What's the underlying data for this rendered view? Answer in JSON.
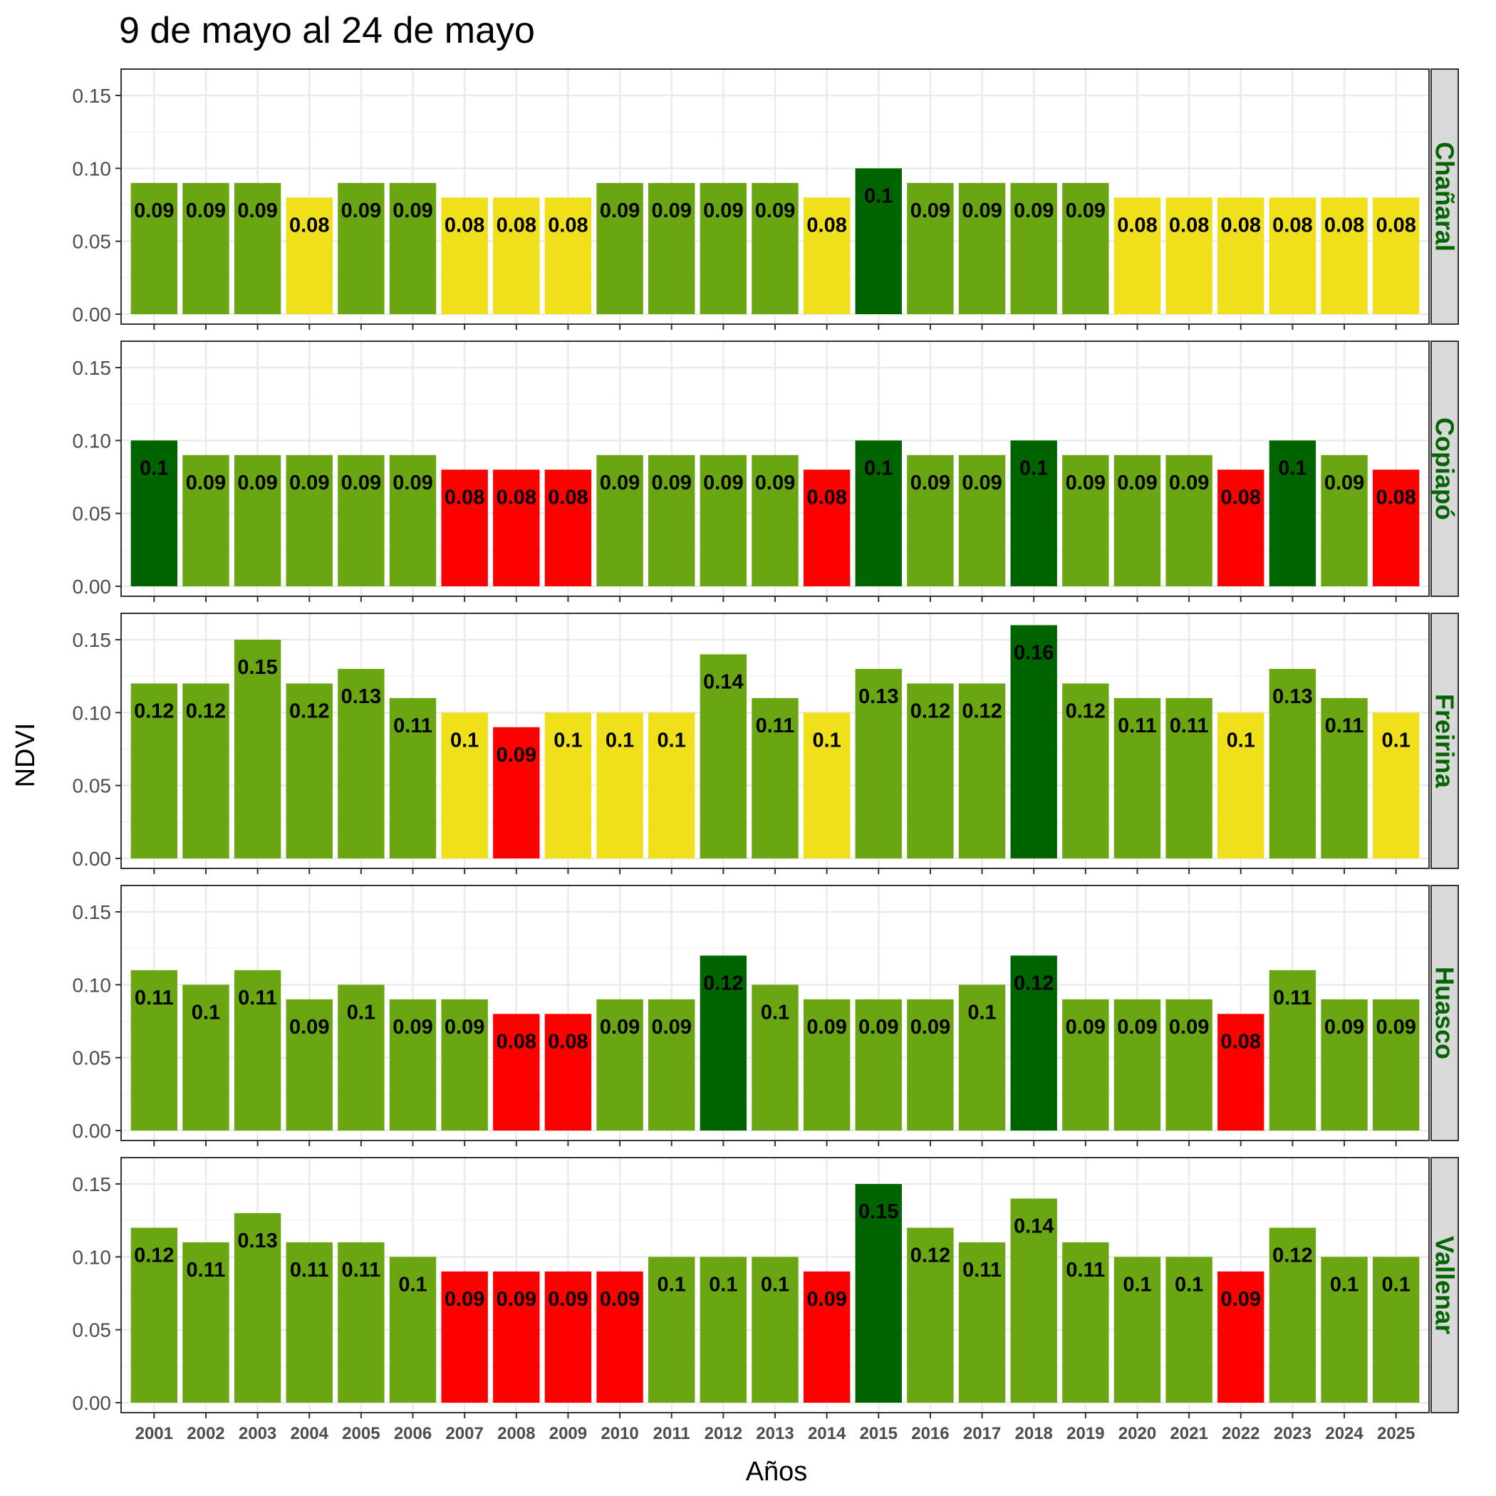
{
  "chart_data": {
    "type": "bar",
    "title": "9 de mayo al 24 de mayo",
    "xlabel": "Años",
    "ylabel": "NDVI",
    "ylim": [
      0,
      0.165
    ],
    "yticks": [
      "0.00",
      "0.05",
      "0.10",
      "0.15"
    ],
    "ytick_values": [
      0,
      0.05,
      0.1,
      0.15
    ],
    "grid": true,
    "categories": [
      "2001",
      "2002",
      "2003",
      "2004",
      "2005",
      "2006",
      "2007",
      "2008",
      "2009",
      "2010",
      "2011",
      "2012",
      "2013",
      "2014",
      "2015",
      "2016",
      "2017",
      "2018",
      "2019",
      "2020",
      "2021",
      "2022",
      "2023",
      "2024",
      "2025"
    ],
    "colors": {
      "dark_green": "#006400",
      "green": "#6aa612",
      "yellow": "#f0e01c",
      "red": "#ff0000",
      "strip_bg": "#d9d9d9",
      "strip_text": "#006400"
    },
    "panels": [
      {
        "name": "Chañaral",
        "values": [
          0.09,
          0.09,
          0.09,
          0.08,
          0.09,
          0.09,
          0.08,
          0.08,
          0.08,
          0.09,
          0.09,
          0.09,
          0.09,
          0.08,
          0.1,
          0.09,
          0.09,
          0.09,
          0.09,
          0.08,
          0.08,
          0.08,
          0.08,
          0.08,
          0.08
        ],
        "labels": [
          "0.09",
          "0.09",
          "0.09",
          "0.08",
          "0.09",
          "0.09",
          "0.08",
          "0.08",
          "0.08",
          "0.09",
          "0.09",
          "0.09",
          "0.09",
          "0.08",
          "0.1",
          "0.09",
          "0.09",
          "0.09",
          "0.09",
          "0.08",
          "0.08",
          "0.08",
          "0.08",
          "0.08",
          "0.08"
        ],
        "bar_colors": [
          "green",
          "green",
          "green",
          "yellow",
          "green",
          "green",
          "yellow",
          "yellow",
          "yellow",
          "green",
          "green",
          "green",
          "green",
          "yellow",
          "dark_green",
          "green",
          "green",
          "green",
          "green",
          "yellow",
          "yellow",
          "yellow",
          "yellow",
          "yellow",
          "yellow"
        ]
      },
      {
        "name": "Copiapó",
        "values": [
          0.1,
          0.09,
          0.09,
          0.09,
          0.09,
          0.09,
          0.08,
          0.08,
          0.08,
          0.09,
          0.09,
          0.09,
          0.09,
          0.08,
          0.1,
          0.09,
          0.09,
          0.1,
          0.09,
          0.09,
          0.09,
          0.08,
          0.1,
          0.09,
          0.08
        ],
        "labels": [
          "0.1",
          "0.09",
          "0.09",
          "0.09",
          "0.09",
          "0.09",
          "0.08",
          "0.08",
          "0.08",
          "0.09",
          "0.09",
          "0.09",
          "0.09",
          "0.08",
          "0.1",
          "0.09",
          "0.09",
          "0.1",
          "0.09",
          "0.09",
          "0.09",
          "0.08",
          "0.1",
          "0.09",
          "0.08"
        ],
        "bar_colors": [
          "dark_green",
          "green",
          "green",
          "green",
          "green",
          "green",
          "red",
          "red",
          "red",
          "green",
          "green",
          "green",
          "green",
          "red",
          "dark_green",
          "green",
          "green",
          "dark_green",
          "green",
          "green",
          "green",
          "red",
          "dark_green",
          "green",
          "red"
        ]
      },
      {
        "name": "Freirina",
        "values": [
          0.12,
          0.12,
          0.15,
          0.12,
          0.13,
          0.11,
          0.1,
          0.09,
          0.1,
          0.1,
          0.1,
          0.14,
          0.11,
          0.1,
          0.13,
          0.12,
          0.12,
          0.16,
          0.12,
          0.11,
          0.11,
          0.1,
          0.13,
          0.11,
          0.1
        ],
        "labels": [
          "0.12",
          "0.12",
          "0.15",
          "0.12",
          "0.13",
          "0.11",
          "0.1",
          "0.09",
          "0.1",
          "0.1",
          "0.1",
          "0.14",
          "0.11",
          "0.1",
          "0.13",
          "0.12",
          "0.12",
          "0.16",
          "0.12",
          "0.11",
          "0.11",
          "0.1",
          "0.13",
          "0.11",
          "0.1"
        ],
        "bar_colors": [
          "green",
          "green",
          "green",
          "green",
          "green",
          "green",
          "yellow",
          "red",
          "yellow",
          "yellow",
          "yellow",
          "green",
          "green",
          "yellow",
          "green",
          "green",
          "green",
          "dark_green",
          "green",
          "green",
          "green",
          "yellow",
          "green",
          "green",
          "yellow"
        ]
      },
      {
        "name": "Huasco",
        "values": [
          0.11,
          0.1,
          0.11,
          0.09,
          0.1,
          0.09,
          0.09,
          0.08,
          0.08,
          0.09,
          0.09,
          0.12,
          0.1,
          0.09,
          0.09,
          0.09,
          0.1,
          0.12,
          0.09,
          0.09,
          0.09,
          0.08,
          0.11,
          0.09,
          0.09
        ],
        "labels": [
          "0.11",
          "0.1",
          "0.11",
          "0.09",
          "0.1",
          "0.09",
          "0.09",
          "0.08",
          "0.08",
          "0.09",
          "0.09",
          "0.12",
          "0.1",
          "0.09",
          "0.09",
          "0.09",
          "0.1",
          "0.12",
          "0.09",
          "0.09",
          "0.09",
          "0.08",
          "0.11",
          "0.09",
          "0.09"
        ],
        "bar_colors": [
          "green",
          "green",
          "green",
          "green",
          "green",
          "green",
          "green",
          "red",
          "red",
          "green",
          "green",
          "dark_green",
          "green",
          "green",
          "green",
          "green",
          "green",
          "dark_green",
          "green",
          "green",
          "green",
          "red",
          "green",
          "green",
          "green"
        ]
      },
      {
        "name": "Vallenar",
        "values": [
          0.12,
          0.11,
          0.13,
          0.11,
          0.11,
          0.1,
          0.09,
          0.09,
          0.09,
          0.09,
          0.1,
          0.1,
          0.1,
          0.09,
          0.15,
          0.12,
          0.11,
          0.14,
          0.11,
          0.1,
          0.1,
          0.09,
          0.12,
          0.1,
          0.1
        ],
        "labels": [
          "0.12",
          "0.11",
          "0.13",
          "0.11",
          "0.11",
          "0.1",
          "0.09",
          "0.09",
          "0.09",
          "0.09",
          "0.1",
          "0.1",
          "0.1",
          "0.09",
          "0.15",
          "0.12",
          "0.11",
          "0.14",
          "0.11",
          "0.1",
          "0.1",
          "0.09",
          "0.12",
          "0.1",
          "0.1"
        ],
        "bar_colors": [
          "green",
          "green",
          "green",
          "green",
          "green",
          "green",
          "red",
          "red",
          "red",
          "red",
          "green",
          "green",
          "green",
          "red",
          "dark_green",
          "green",
          "green",
          "green",
          "green",
          "green",
          "green",
          "red",
          "green",
          "green",
          "green"
        ]
      }
    ]
  }
}
